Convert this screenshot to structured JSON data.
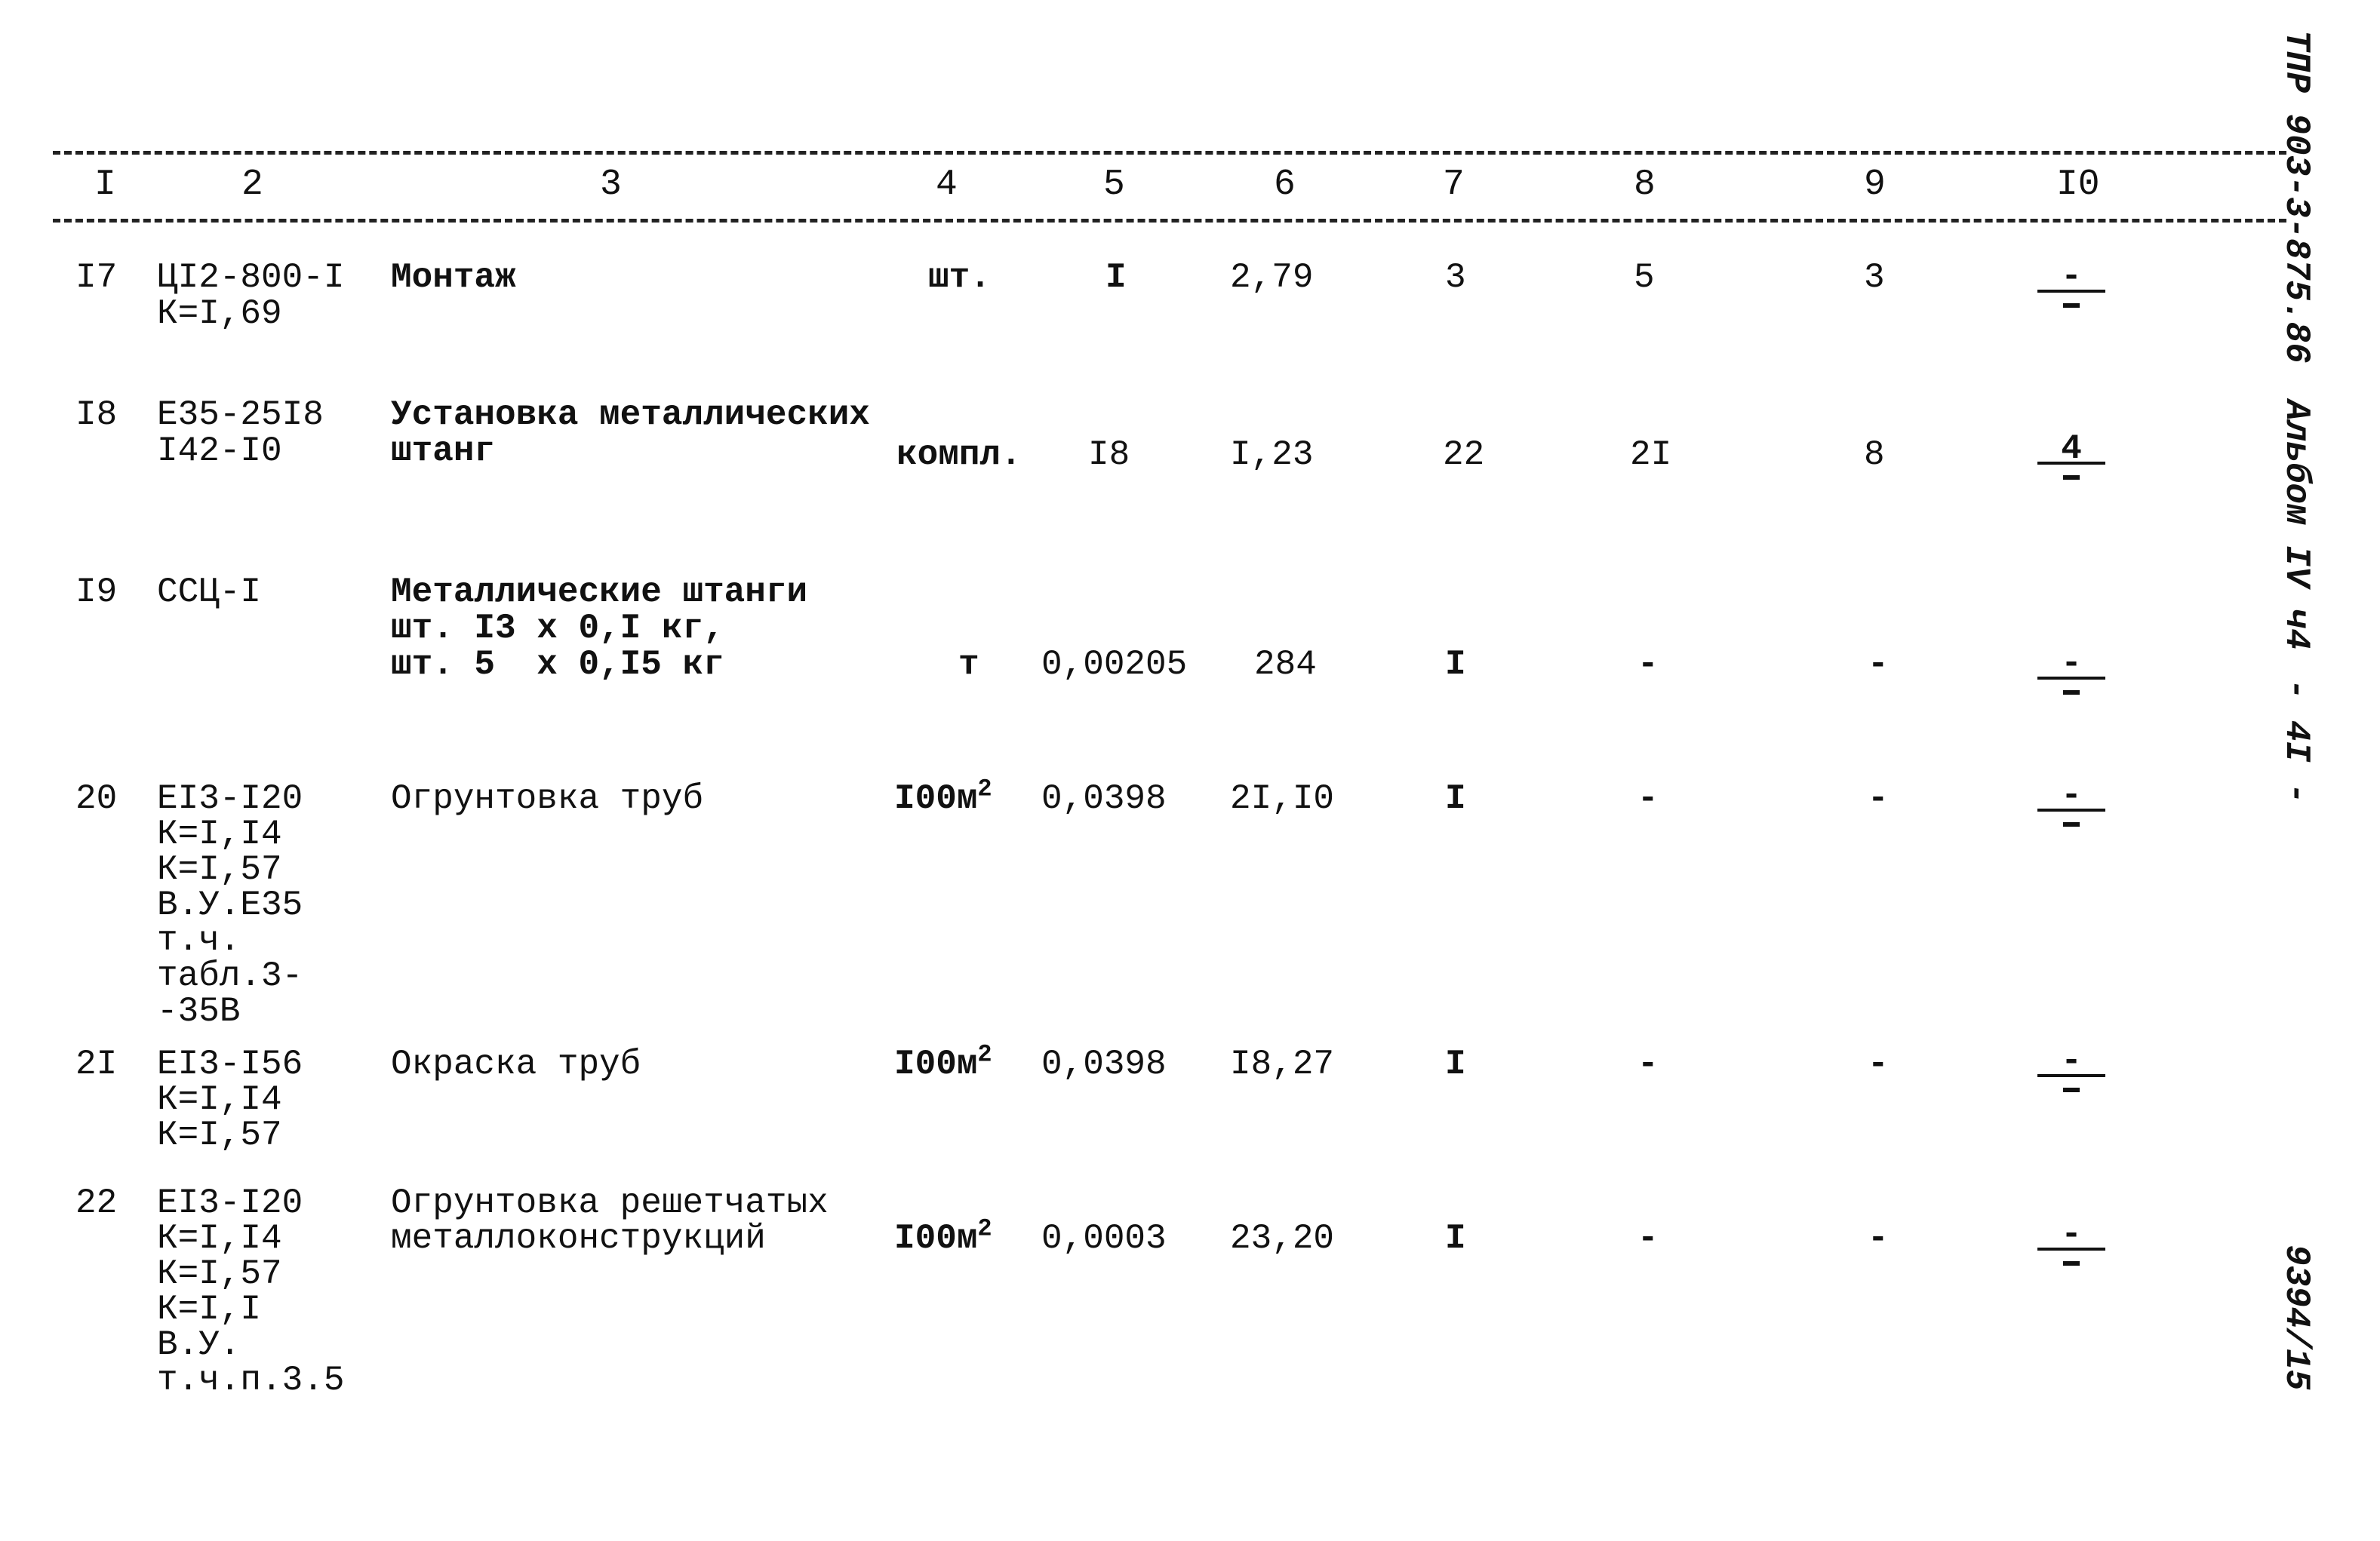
{
  "header": [
    "I",
    "2",
    "3",
    "4",
    "5",
    "6",
    "7",
    "8",
    "9",
    "I0"
  ],
  "rows": [
    {
      "n": "I7",
      "code": [
        "ЦI2-800-I",
        "К=I,69"
      ],
      "name": [
        "Монтаж"
      ],
      "unit": "шт.",
      "qty": "I",
      "price": "2,79",
      "c7": "3",
      "c8": "5",
      "c9": "3",
      "c10_top": "-",
      "c10_bottom": "-"
    },
    {
      "n": "I8",
      "code": [
        "Е35-25I8",
        "I42-I0"
      ],
      "name": [
        "Установка металлических",
        "штанг"
      ],
      "unit": "компл.",
      "qty": "I8",
      "price": "I,23",
      "c7": "22",
      "c8": "2I",
      "c9": "8",
      "c10_top": "4",
      "c10_bottom": "-"
    },
    {
      "n": "I9",
      "code": [
        "ССЦ-I"
      ],
      "name": [
        "Металлические штанги",
        "шт. I3 x 0,I кг,",
        "шт. 5  x 0,I5 кг"
      ],
      "unit": "т",
      "qty": "0,00205",
      "price": "284",
      "c7": "I",
      "c8": "-",
      "c9": "-",
      "c10_top": "-",
      "c10_bottom": "-"
    },
    {
      "n": "20",
      "code": [
        "ЕI3-I20",
        "К=I,I4",
        "К=I,57",
        "В.У.Е35",
        "т.ч.",
        "табл.3-",
        "-35В"
      ],
      "name": [
        "Огрунтовка труб"
      ],
      "unit": "I00м",
      "unit_sup": "2",
      "qty": "0,0398",
      "price": "2I,I0",
      "c7": "I",
      "c8": "-",
      "c9": "-",
      "c10_top": "-",
      "c10_bottom": "-"
    },
    {
      "n": "2I",
      "code": [
        "ЕI3-I56",
        "К=I,I4",
        "К=I,57"
      ],
      "name": [
        "Окраска труб"
      ],
      "unit": "I00м",
      "unit_sup": "2",
      "qty": "0,0398",
      "price": "I8,27",
      "c7": "I",
      "c8": "-",
      "c9": "-",
      "c10_top": "-",
      "c10_bottom": "-"
    },
    {
      "n": "22",
      "code": [
        "ЕI3-I20",
        "К=I,I4",
        "К=I,57",
        "К=I,I",
        "В.У.",
        "т.ч.п.3.5"
      ],
      "name": [
        "Огрунтовка решетчатых",
        "металлоконструкций"
      ],
      "unit": "I00м",
      "unit_sup": "2",
      "qty": "0,0003",
      "price": "23,20",
      "c7": "I",
      "c8": "-",
      "c9": "-",
      "c10_top": "-",
      "c10_bottom": "-"
    }
  ],
  "margin": {
    "doc_code": "ТПР 903-3-875.86",
    "album": "Альбом IV ч4",
    "page": "- 4I -",
    "inventory": "9394/15"
  }
}
